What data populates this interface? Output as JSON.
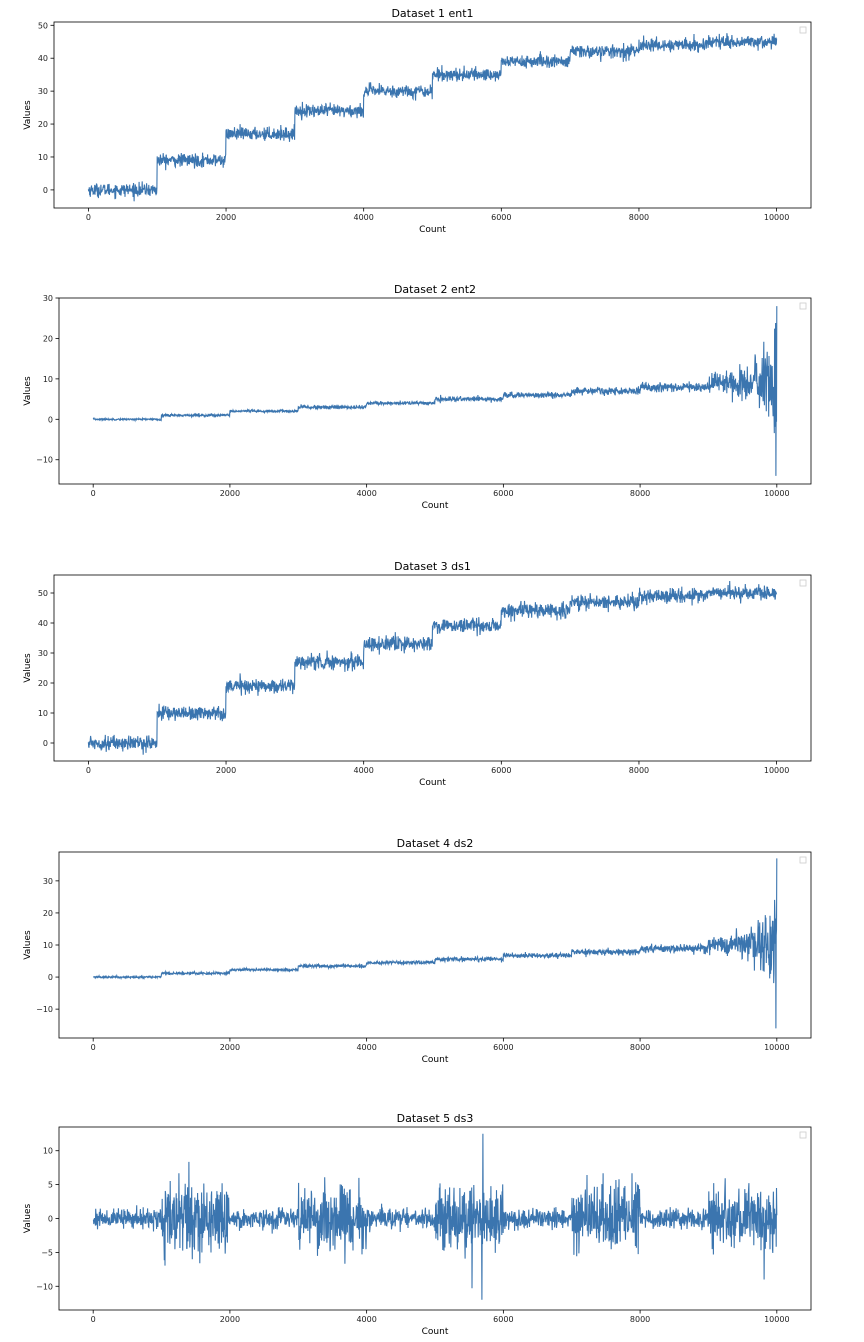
{
  "chart_data": [
    {
      "type": "line",
      "title": "Dataset 1  ent1",
      "xlabel": "Count",
      "ylabel": "Values",
      "xlim": [
        -500,
        10500
      ],
      "ylim": [
        -5.5,
        51
      ],
      "xticks": [
        0,
        2000,
        4000,
        6000,
        8000,
        10000
      ],
      "yticks": [
        0,
        10,
        20,
        30,
        40,
        50
      ],
      "legend": "top-right (empty)",
      "color": "#3b75af",
      "segments": [
        {
          "x_start": 0,
          "x_end": 1000,
          "mean": 0,
          "spread": 1.8
        },
        {
          "x_start": 1000,
          "x_end": 2000,
          "mean": 9,
          "spread": 1.8
        },
        {
          "x_start": 2000,
          "x_end": 3000,
          "mean": 17,
          "spread": 1.8
        },
        {
          "x_start": 3000,
          "x_end": 4000,
          "mean": 24,
          "spread": 1.8
        },
        {
          "x_start": 4000,
          "x_end": 5000,
          "mean": 30,
          "spread": 1.8
        },
        {
          "x_start": 5000,
          "x_end": 6000,
          "mean": 35,
          "spread": 1.8
        },
        {
          "x_start": 6000,
          "x_end": 7000,
          "mean": 39,
          "spread": 1.8
        },
        {
          "x_start": 7000,
          "x_end": 8000,
          "mean": 42,
          "spread": 1.8
        },
        {
          "x_start": 8000,
          "x_end": 9000,
          "mean": 44,
          "spread": 1.8
        },
        {
          "x_start": 9000,
          "x_end": 10000,
          "mean": 45,
          "spread": 1.8
        }
      ]
    },
    {
      "type": "line",
      "title": "Dataset 2  ent2",
      "xlabel": "Count",
      "ylabel": "Values",
      "xlim": [
        -500,
        10500
      ],
      "ylim": [
        -16,
        30
      ],
      "xticks": [
        0,
        2000,
        4000,
        6000,
        8000,
        10000
      ],
      "yticks": [
        -10,
        0,
        10,
        20,
        30
      ],
      "legend": "top-right (empty)",
      "color": "#3b75af",
      "segments": [
        {
          "x_start": 0,
          "x_end": 1000,
          "mean": 0,
          "spread": 0.2
        },
        {
          "x_start": 1000,
          "x_end": 2000,
          "mean": 1,
          "spread": 0.3
        },
        {
          "x_start": 2000,
          "x_end": 3000,
          "mean": 2,
          "spread": 0.3
        },
        {
          "x_start": 3000,
          "x_end": 4000,
          "mean": 3,
          "spread": 0.4
        },
        {
          "x_start": 4000,
          "x_end": 5000,
          "mean": 4,
          "spread": 0.4
        },
        {
          "x_start": 5000,
          "x_end": 6000,
          "mean": 5,
          "spread": 0.5
        },
        {
          "x_start": 6000,
          "x_end": 7000,
          "mean": 6,
          "spread": 0.6
        },
        {
          "x_start": 7000,
          "x_end": 8000,
          "mean": 7,
          "spread": 0.8
        },
        {
          "x_start": 8000,
          "x_end": 9000,
          "mean": 8,
          "spread": 1.0
        },
        {
          "x_start": 9000,
          "x_end": 10000,
          "mean": 9,
          "spread": 2.5,
          "growth_to": 13
        }
      ],
      "extremes": {
        "max": 28,
        "min": -14,
        "at_x": 10000
      }
    },
    {
      "type": "line",
      "title": "Dataset 3  ds1",
      "xlabel": "Count",
      "ylabel": "Values",
      "xlim": [
        -500,
        10500
      ],
      "ylim": [
        -6,
        56
      ],
      "xticks": [
        0,
        2000,
        4000,
        6000,
        8000,
        10000
      ],
      "yticks": [
        0,
        10,
        20,
        30,
        40,
        50
      ],
      "legend": "top-right (empty)",
      "color": "#3b75af",
      "segments": [
        {
          "x_start": 0,
          "x_end": 1000,
          "mean": 0,
          "spread": 2.2
        },
        {
          "x_start": 1000,
          "x_end": 2000,
          "mean": 10,
          "spread": 2.2
        },
        {
          "x_start": 2000,
          "x_end": 3000,
          "mean": 19,
          "spread": 2.2
        },
        {
          "x_start": 3000,
          "x_end": 4000,
          "mean": 27,
          "spread": 2.2
        },
        {
          "x_start": 4000,
          "x_end": 5000,
          "mean": 33,
          "spread": 2.2
        },
        {
          "x_start": 5000,
          "x_end": 6000,
          "mean": 39,
          "spread": 2.2
        },
        {
          "x_start": 6000,
          "x_end": 7000,
          "mean": 44,
          "spread": 2.2
        },
        {
          "x_start": 7000,
          "x_end": 8000,
          "mean": 47,
          "spread": 2.2
        },
        {
          "x_start": 8000,
          "x_end": 9000,
          "mean": 49,
          "spread": 2.2
        },
        {
          "x_start": 9000,
          "x_end": 10000,
          "mean": 50,
          "spread": 2.2
        }
      ]
    },
    {
      "type": "line",
      "title": "Dataset 4  ds2",
      "xlabel": "Count",
      "ylabel": "Values",
      "xlim": [
        -500,
        10500
      ],
      "ylim": [
        -19,
        39
      ],
      "xticks": [
        0,
        2000,
        4000,
        6000,
        8000,
        10000
      ],
      "yticks": [
        -10,
        0,
        10,
        20,
        30
      ],
      "legend": "top-right (empty)",
      "color": "#3b75af",
      "segments": [
        {
          "x_start": 0,
          "x_end": 1000,
          "mean": 0,
          "spread": 0.3
        },
        {
          "x_start": 1000,
          "x_end": 2000,
          "mean": 1.2,
          "spread": 0.4
        },
        {
          "x_start": 2000,
          "x_end": 3000,
          "mean": 2.3,
          "spread": 0.4
        },
        {
          "x_start": 3000,
          "x_end": 4000,
          "mean": 3.4,
          "spread": 0.5
        },
        {
          "x_start": 4000,
          "x_end": 5000,
          "mean": 4.5,
          "spread": 0.5
        },
        {
          "x_start": 5000,
          "x_end": 6000,
          "mean": 5.6,
          "spread": 0.6
        },
        {
          "x_start": 6000,
          "x_end": 7000,
          "mean": 6.7,
          "spread": 0.7
        },
        {
          "x_start": 7000,
          "x_end": 8000,
          "mean": 7.8,
          "spread": 0.9
        },
        {
          "x_start": 8000,
          "x_end": 9000,
          "mean": 9,
          "spread": 1.2
        },
        {
          "x_start": 9000,
          "x_end": 10000,
          "mean": 10,
          "spread": 3,
          "growth_to": 15
        }
      ],
      "extremes": {
        "max": 37,
        "min": -16,
        "at_x": 10000
      }
    },
    {
      "type": "line",
      "title": "Dataset 5  ds3",
      "xlabel": "Count",
      "ylabel": "Values",
      "xlim": [
        -500,
        10500
      ],
      "ylim": [
        -13.5,
        13.5
      ],
      "xticks": [
        0,
        2000,
        4000,
        6000,
        8000,
        10000
      ],
      "yticks": [
        -10,
        -5,
        0,
        5,
        10
      ],
      "legend": "top-right (empty)",
      "color": "#3b75af",
      "segments": [
        {
          "x_start": 0,
          "x_end": 1000,
          "mean": 0,
          "spread": 1.3
        },
        {
          "x_start": 1000,
          "x_end": 2000,
          "mean": 0,
          "spread": 4.5
        },
        {
          "x_start": 2000,
          "x_end": 3000,
          "mean": 0,
          "spread": 1.3
        },
        {
          "x_start": 3000,
          "x_end": 4000,
          "mean": 0,
          "spread": 4.5
        },
        {
          "x_start": 4000,
          "x_end": 5000,
          "mean": 0,
          "spread": 1.3
        },
        {
          "x_start": 5000,
          "x_end": 6000,
          "mean": 0,
          "spread": 4.5
        },
        {
          "x_start": 6000,
          "x_end": 7000,
          "mean": 0,
          "spread": 1.3
        },
        {
          "x_start": 7000,
          "x_end": 8000,
          "mean": 0,
          "spread": 4.5
        },
        {
          "x_start": 8000,
          "x_end": 9000,
          "mean": 0,
          "spread": 1.3
        },
        {
          "x_start": 9000,
          "x_end": 10000,
          "mean": 0,
          "spread": 4.5
        }
      ],
      "extremes": {
        "max": 12.5,
        "min": -12,
        "at_x": 5700
      }
    }
  ]
}
